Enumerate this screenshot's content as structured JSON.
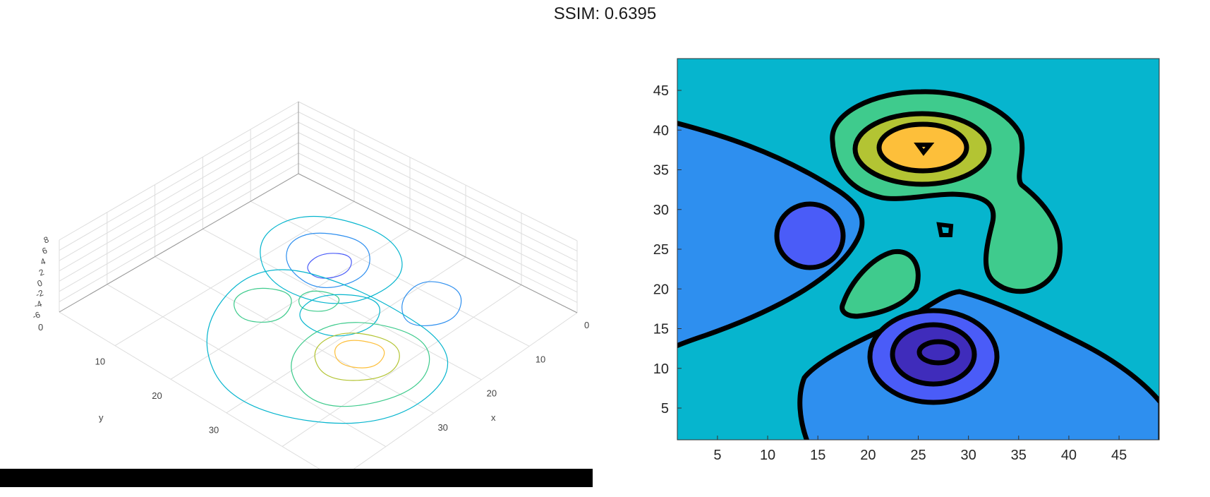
{
  "figure_title": "SSIM: 0.6395",
  "colors": {
    "background": "#ffffff",
    "grid3d": "#dddddd",
    "axis3d": "#999999",
    "contour_line": "#000000",
    "fill_min": "#1f77ff"
  },
  "chart_data": [
    {
      "type": "contour3",
      "view": "3d",
      "xlabel": "x",
      "ylabel": "y",
      "zlabel": "",
      "x_ticks": [
        "0",
        "10",
        "20",
        "30"
      ],
      "y_ticks": [
        "0",
        "10",
        "20",
        "30"
      ],
      "z_ticks": [
        "8",
        "6",
        "4",
        "2",
        "0",
        "-2",
        "-4",
        "-6"
      ],
      "xlim": [
        0,
        49
      ],
      "ylim": [
        0,
        49
      ],
      "zlim": [
        -6,
        8
      ],
      "grid": true,
      "colormap": "parula"
    },
    {
      "type": "contourf",
      "view": "2d",
      "xlabel": "",
      "ylabel": "",
      "x_ticks": [
        "5",
        "10",
        "15",
        "20",
        "25",
        "30",
        "35",
        "40",
        "45"
      ],
      "y_ticks": [
        "5",
        "10",
        "15",
        "20",
        "25",
        "30",
        "35",
        "40",
        "45"
      ],
      "xlim": [
        1,
        49
      ],
      "ylim": [
        1,
        49
      ],
      "grid": false,
      "colormap": "parula",
      "level_colors": [
        "#3f2cbb",
        "#4a5cf8",
        "#2e8fef",
        "#06b5ce",
        "#3fcb8d",
        "#b3c433",
        "#fdbf3a"
      ],
      "features": [
        {
          "kind": "peak",
          "x": 25,
          "y": 38,
          "max_level": 6
        },
        {
          "kind": "valley",
          "x": 27,
          "y": 12,
          "min_level": 0
        },
        {
          "kind": "valley",
          "x": 13,
          "y": 27,
          "min_level": 1
        },
        {
          "kind": "bump",
          "x": 22,
          "y": 21,
          "level": 4
        },
        {
          "kind": "bump",
          "x": 35,
          "y": 24,
          "level": 4
        },
        {
          "kind": "small_loop",
          "x": 27,
          "y": 28
        }
      ]
    }
  ]
}
